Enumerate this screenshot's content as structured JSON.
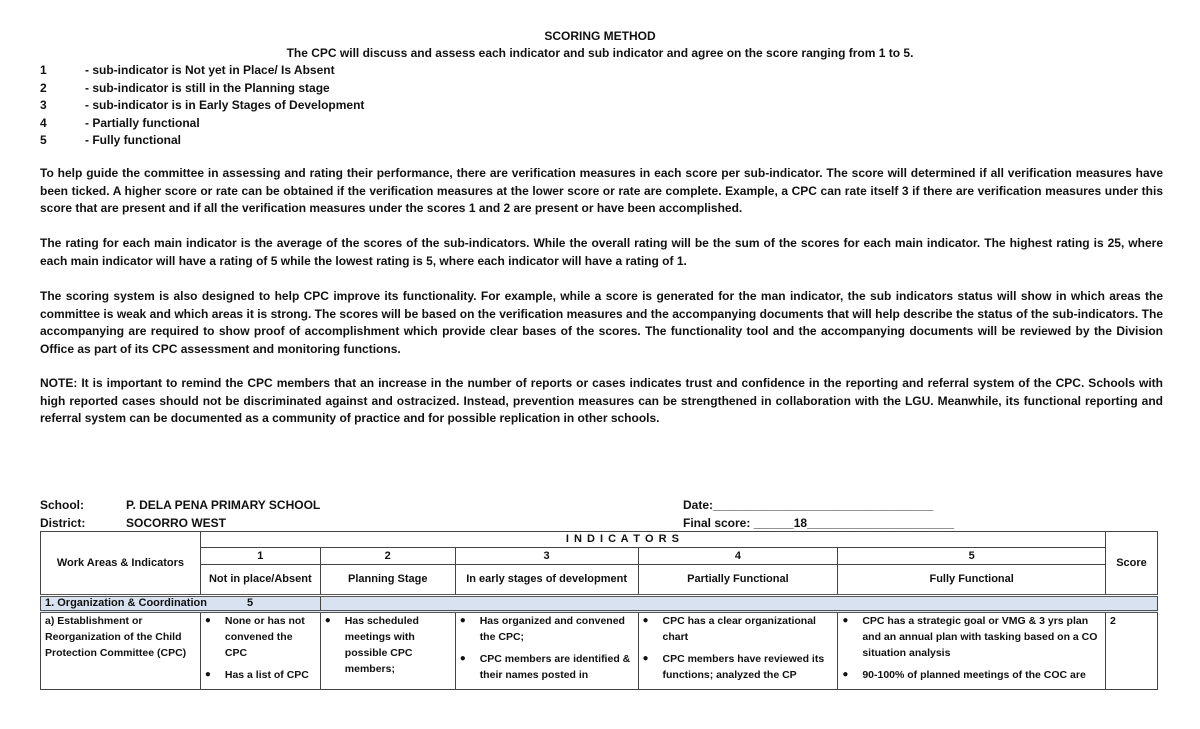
{
  "title": "SCORING METHOD",
  "subtitle": "The CPC will discuss and assess each indicator and sub indicator and agree on the score ranging from 1 to 5.",
  "scale": [
    {
      "n": "1",
      "text": "- sub-indicator is Not yet in Place/ Is Absent"
    },
    {
      "n": "2",
      "text": "- sub-indicator is still in the Planning stage"
    },
    {
      "n": "3",
      "text": "- sub-indicator is in Early Stages of Development"
    },
    {
      "n": "4",
      "text": "- Partially functional"
    },
    {
      "n": "5",
      "text": "- Fully functional"
    }
  ],
  "paragraphs": [
    "To help guide the committee in assessing and rating their performance, there are verification measures in each score per sub-indicator. The score will determined if all verification measures have been ticked. A higher score or rate can be obtained if the verification measures at the lower score or rate are complete. Example, a CPC can rate itself 3 if there are verification measures under this score that are present and if all the verification measures under the scores 1 and 2 are present or have been accomplished.",
    "The rating for each main indicator is the average of the scores of the sub-indicators. While the overall rating will be the sum of the scores for each main indicator. The highest rating is 25, where each main indicator will have a rating of 5 while the lowest rating is 5, where each indicator will have a rating of 1.",
    "The scoring system is also designed to help CPC improve its functionality. For example, while a score is generated for the man indicator, the sub indicators status will show in which areas the committee is weak and which areas it is strong. The scores will be based on the verification measures and the accompanying documents that will help describe the status of the sub-indicators. The accompanying are required to show proof of accomplishment  which provide clear bases of the scores. The functionality tool and the accompanying documents will be reviewed by the Division Office as part of its CPC assessment and monitoring functions.",
    "NOTE: It is important to remind the CPC members that an increase in the number of reports or cases indicates trust and confidence in the reporting and referral system of the CPC. Schools with high reported cases should not be discriminated against and ostracized. Instead, prevention measures can be strengthened in collaboration with the LGU. Meanwhile, its functional reporting and referral system can be documented as a community of practice and for possible replication in other schools."
  ],
  "info": {
    "school_label": "School:",
    "school": "P. DELA PENA PRIMARY SCHOOL",
    "district_label": "District:",
    "district": "SOCORRO WEST",
    "date": "Date:_________________________________",
    "final_score": "Final score: ______18______________________"
  },
  "table": {
    "work_areas_header": "Work Areas & Indicators",
    "indicators_header": "I N D I C A T O R S",
    "score_header": "Score",
    "levels": [
      {
        "num": "1",
        "label": "Not in place/Absent"
      },
      {
        "num": "2",
        "label": "Planning Stage"
      },
      {
        "num": "3",
        "label": "In early stages of development"
      },
      {
        "num": "4",
        "label": "Partially Functional"
      },
      {
        "num": "5",
        "label": "Fully Functional"
      }
    ],
    "section": {
      "label": "1. Organization & Coordination",
      "value": "5"
    },
    "row": {
      "indicator": "a) Establishment or Reorganization of the Child Protection Committee (CPC)",
      "cells": [
        [
          "None or has not convened the CPC",
          "Has a list of CPC"
        ],
        [
          "Has scheduled meetings with possible CPC members;"
        ],
        [
          "Has organized and convened the CPC;",
          "CPC members are identified & their names posted in"
        ],
        [
          "CPC has a clear organizational chart",
          "CPC members have reviewed its functions; analyzed the CP"
        ],
        [
          "CPC has a strategic goal or VMG & 3 yrs plan and an annual plan with tasking based on a CO situation analysis",
          "90-100% of planned meetings of the COC are"
        ]
      ],
      "score": "2"
    }
  }
}
